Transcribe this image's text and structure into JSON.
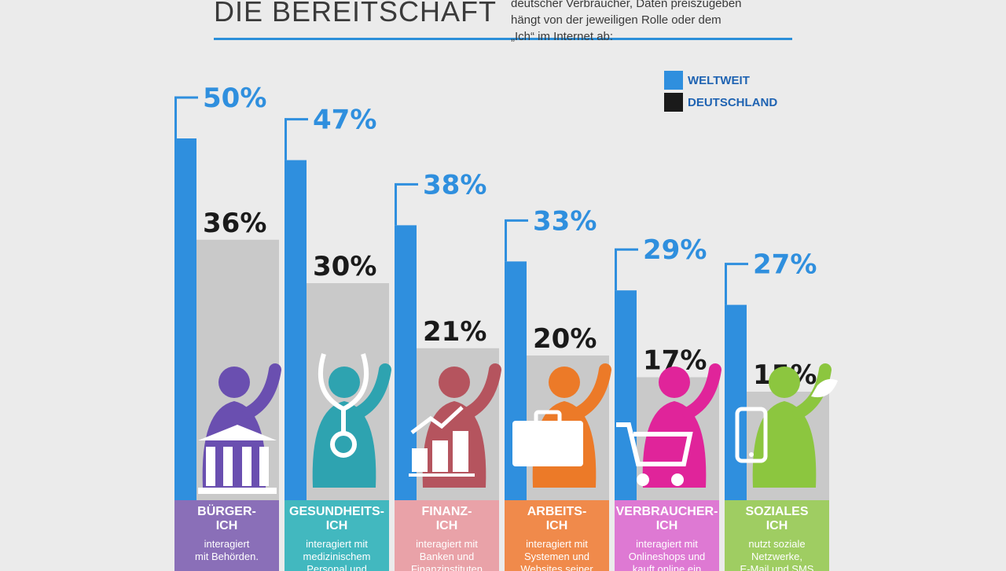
{
  "header": {
    "title": "DIE BEREITSCHAFT",
    "intro": "deutscher Verbraucher, Daten preiszugeben\nhängt von der jeweiligen Rolle oder dem\n„Ich“ im Internet ab:"
  },
  "colors": {
    "weltweit": "#2f8fde",
    "deutschland_bar": "#c9c9c9",
    "deutschland_legend": "#1a1a1a",
    "accent": "#2b8fd9"
  },
  "categories": [
    {
      "name": "BÜRGER-\nICH",
      "desc": "interagiert\nmit Behörden.",
      "color": "#8a6fb8",
      "figure_color": "#6a4fb0",
      "icon": "government-building-icon"
    },
    {
      "name": "GESUNDHEITS-\nICH",
      "desc": "interagiert mit\nmedizinischem\nPersonal und",
      "color": "#42b8bf",
      "figure_color": "#2ea3b0",
      "icon": "stethoscope-icon"
    },
    {
      "name": "FINANZ-\nICH",
      "desc": "interagiert mit\nBanken und\nFinanzinstituten",
      "color": "#e9a2a8",
      "figure_color": "#b5545e",
      "icon": "finance-growth-icon"
    },
    {
      "name": "ARBEITS-\nICH",
      "desc": "interagiert mit\nSystemen und\nWebsites seiner",
      "color": "#f08a4b",
      "figure_color": "#ec7a28",
      "icon": "briefcase-icon"
    },
    {
      "name": "VERBRAUCHER-\nICH",
      "desc": "interagiert mit\nOnlineshops und\nkauft online ein",
      "color": "#de79d3",
      "figure_color": "#e0249a",
      "icon": "shopping-cart-icon"
    },
    {
      "name": "SOZIALES\nICH",
      "desc": "nutzt soziale\nNetzwerke,\nE-Mail und SMS",
      "color": "#9fcd62",
      "figure_color": "#8cc63f",
      "icon": "smartphone-twitter-icon"
    }
  ],
  "chart_data": {
    "type": "bar",
    "categories": [
      "BÜRGER-ICH",
      "GESUNDHEITS-ICH",
      "FINANZ-ICH",
      "ARBEITS-ICH",
      "VERBRAUCHER-ICH",
      "SOZIALES ICH"
    ],
    "series": [
      {
        "name": "WELTWEIT",
        "values": [
          50,
          47,
          38,
          33,
          29,
          27
        ],
        "labels": [
          "50%",
          "47%",
          "38%",
          "33%",
          "29%",
          "27%"
        ]
      },
      {
        "name": "DEUTSCHLAND",
        "values": [
          36,
          30,
          21,
          20,
          17,
          15
        ],
        "labels": [
          "36%",
          "30%",
          "21%",
          "20%",
          "17%",
          "15%"
        ]
      }
    ],
    "title": "",
    "xlabel": "",
    "ylabel": "",
    "ylim": [
      0,
      50
    ],
    "legend": "top-right",
    "grid": false
  }
}
